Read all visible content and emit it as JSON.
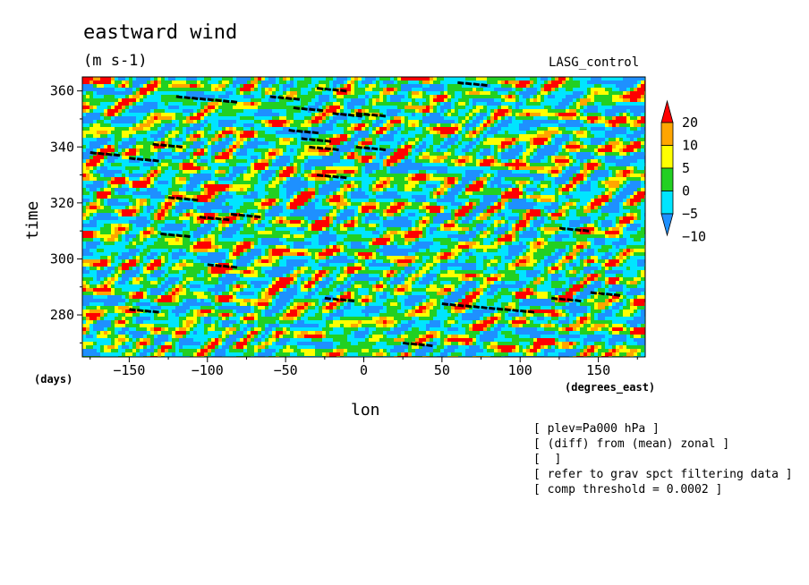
{
  "title": "eastward wind",
  "units": "(m s-1)",
  "model_label": "LASG_control",
  "xlabel": "lon",
  "ylabel": "time",
  "x_unit_left": "(days)",
  "x_unit_right": "(degrees_east)",
  "notes": [
    "[ plev=Pa000 hPa ]",
    "[ (diff) from (mean) zonal ]",
    "[  ]",
    "[ refer to grav spct filtering data ]",
    "[ comp threshold = 0.0002 ]"
  ],
  "chart_data": {
    "type": "heatmap",
    "title": "eastward wind",
    "units": "(m s-1)",
    "xlabel": "lon",
    "ylabel": "time",
    "xlim": [
      -180,
      180
    ],
    "ylim": [
      265,
      365
    ],
    "x_ticks": [
      -150,
      -100,
      -50,
      0,
      50,
      100,
      150
    ],
    "y_ticks": [
      280,
      300,
      320,
      340,
      360
    ],
    "colorbar": {
      "levels": [
        -10,
        -5,
        0,
        5,
        10,
        20
      ],
      "tick_labels": [
        "20",
        "10",
        "5",
        "0",
        "-5",
        "-10"
      ],
      "colors": [
        "#1e90ff",
        "#00e5ff",
        "#22d022",
        "#ffff00",
        "#ffa500",
        "#ff0000"
      ],
      "extend": "both"
    },
    "overlay": "black dashed contour segments marking filtered wave events"
  }
}
